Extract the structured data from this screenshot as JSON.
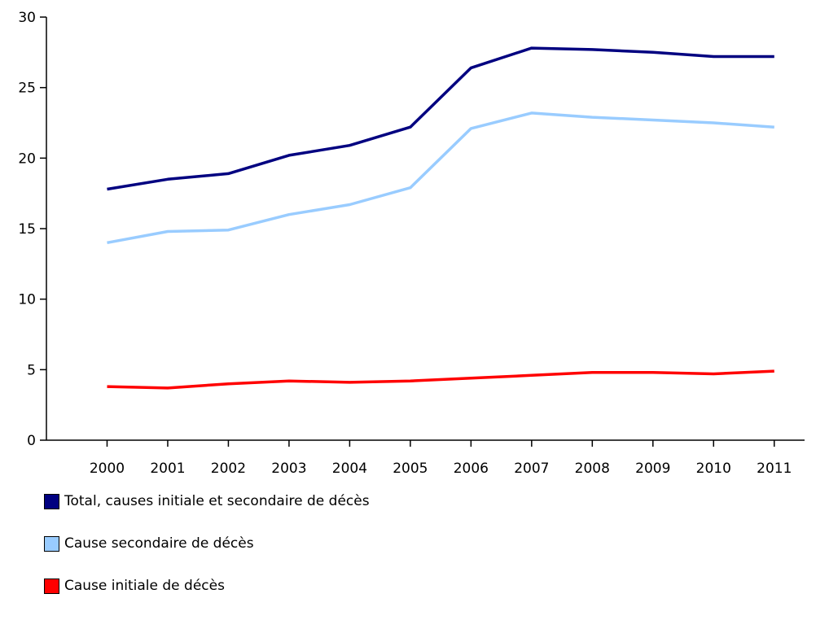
{
  "chart_data": {
    "type": "line",
    "title": "",
    "xlabel": "",
    "ylabel": "",
    "categories": [
      "2000",
      "2001",
      "2002",
      "2003",
      "2004",
      "2005",
      "2006",
      "2007",
      "2008",
      "2009",
      "2010",
      "2011"
    ],
    "ylim": [
      0,
      30
    ],
    "yticks": [
      "0",
      "5",
      "10",
      "15",
      "20",
      "25",
      "30"
    ],
    "grid": false,
    "legend_position": "bottom-left",
    "series": [
      {
        "name": "Total, causes initiale et secondaire de décès",
        "color": "#000080",
        "values": [
          17.8,
          18.5,
          18.9,
          20.2,
          20.9,
          22.2,
          26.4,
          27.8,
          27.7,
          27.5,
          27.2,
          27.2
        ]
      },
      {
        "name": "Cause secondaire de décès",
        "color": "#99ccff",
        "values": [
          14.0,
          14.8,
          14.9,
          16.0,
          16.7,
          17.9,
          22.1,
          23.2,
          22.9,
          22.7,
          22.5,
          22.2
        ]
      },
      {
        "name": "Cause initiale de décès",
        "color": "#ff0000",
        "values": [
          3.8,
          3.7,
          4.0,
          4.2,
          4.1,
          4.2,
          4.4,
          4.6,
          4.8,
          4.8,
          4.7,
          4.9
        ]
      }
    ]
  }
}
